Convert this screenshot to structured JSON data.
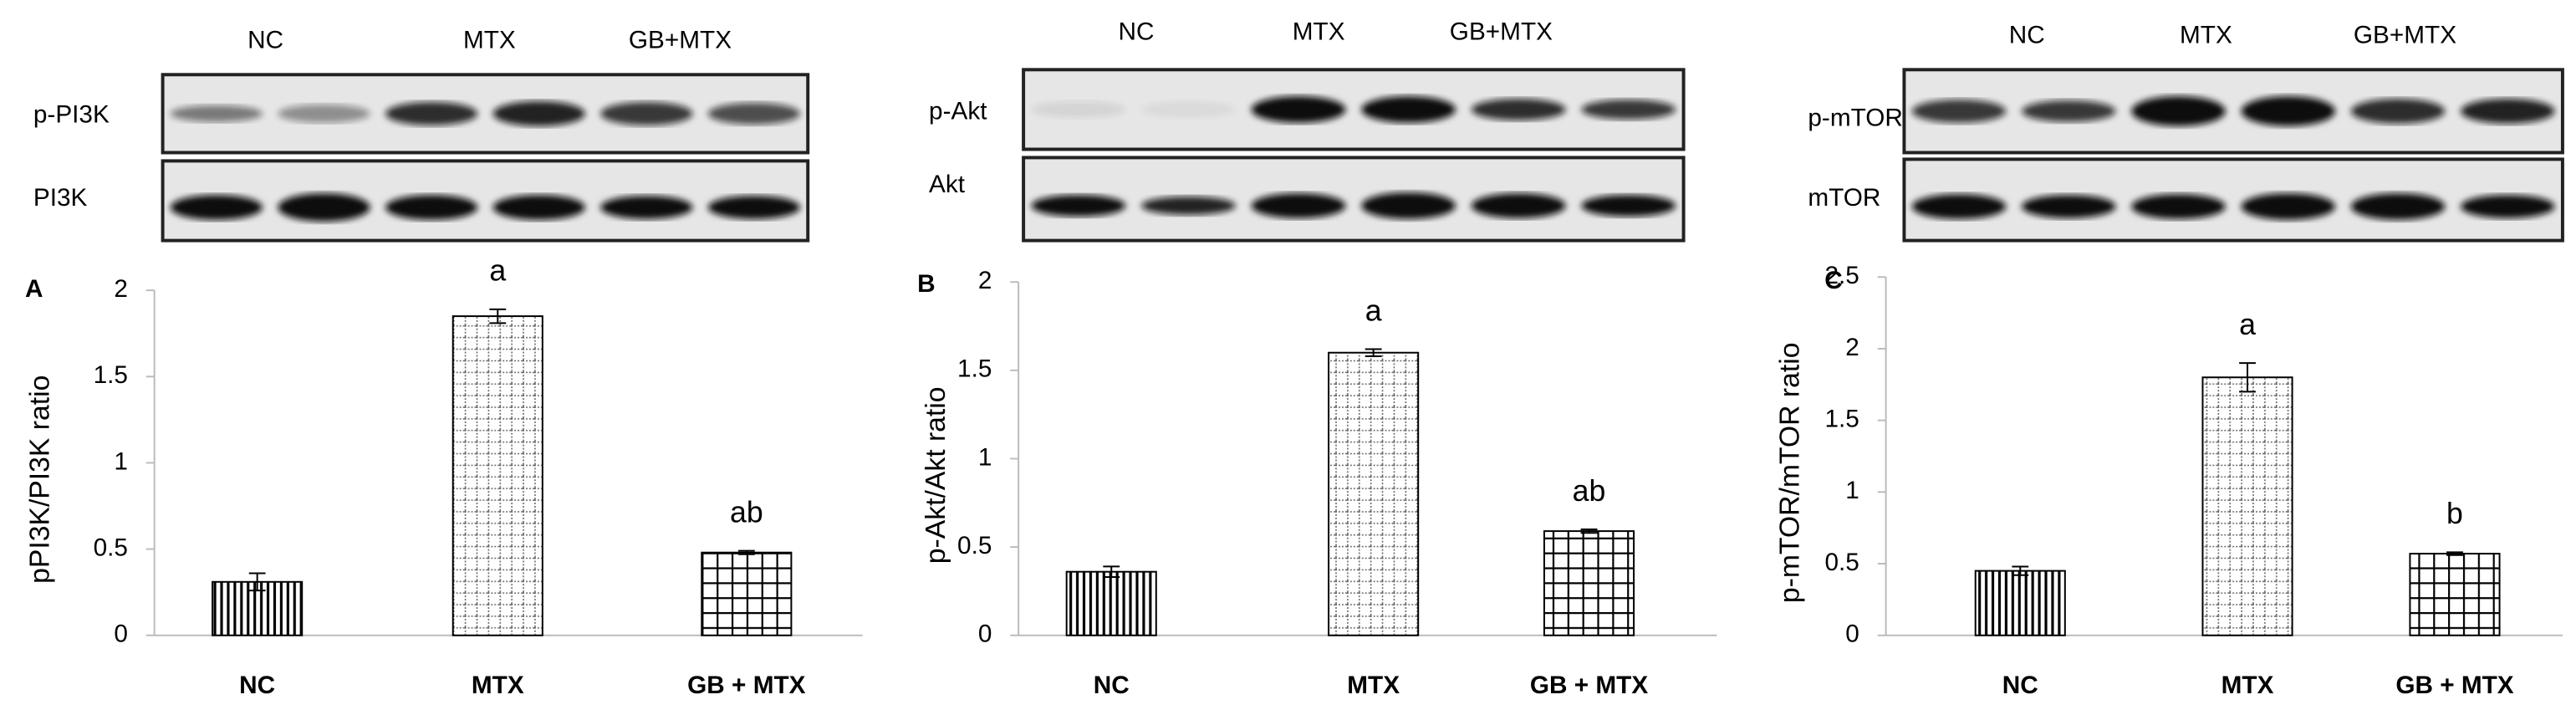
{
  "chart_data": [
    {
      "type": "bar",
      "panel": "A",
      "ylabel": "pPI3K/PI3K ratio",
      "blot": {
        "lanes": [
          "NC",
          "MTX",
          "GB+MTX"
        ],
        "rows": [
          "p-PI3K",
          "PI3K"
        ]
      },
      "categories": [
        "NC",
        "MTX",
        "GB + MTX"
      ],
      "values": [
        0.31,
        1.85,
        0.48
      ],
      "errors": [
        0.05,
        0.04,
        0.01
      ],
      "annotations": [
        null,
        "a",
        "ab"
      ],
      "color": "#000000",
      "ylim": [
        0,
        2
      ],
      "yticks": [
        0,
        0.5,
        1,
        1.5,
        2
      ],
      "grid": false
    },
    {
      "type": "bar",
      "panel": "B",
      "ylabel": "p-Akt/Akt ratio",
      "blot": {
        "lanes": [
          "NC",
          "MTX",
          "GB+MTX"
        ],
        "rows": [
          "p-Akt",
          "Akt"
        ]
      },
      "categories": [
        "NC",
        "MTX",
        "GB + MTX"
      ],
      "values": [
        0.36,
        1.6,
        0.59
      ],
      "errors": [
        0.03,
        0.02,
        0.01
      ],
      "annotations": [
        null,
        "a",
        "ab"
      ],
      "color": "#000000",
      "ylim": [
        0,
        2
      ],
      "yticks": [
        0,
        0.5,
        1,
        1.5,
        2
      ],
      "grid": false
    },
    {
      "type": "bar",
      "panel": "C",
      "ylabel": "p-mTOR/mTOR ratio",
      "blot": {
        "lanes": [
          "NC",
          "MTX",
          "GB+MTX"
        ],
        "rows": [
          "p-mTOR",
          "mTOR"
        ]
      },
      "categories": [
        "NC",
        "MTX",
        "GB + MTX"
      ],
      "values": [
        0.45,
        1.8,
        0.57
      ],
      "errors": [
        0.03,
        0.1,
        0.01
      ],
      "annotations": [
        null,
        "a",
        "b"
      ],
      "color": "#000000",
      "ylim": [
        0,
        2.5
      ],
      "yticks": [
        0,
        0.5,
        1,
        1.5,
        2,
        2.5
      ],
      "grid": false
    }
  ]
}
